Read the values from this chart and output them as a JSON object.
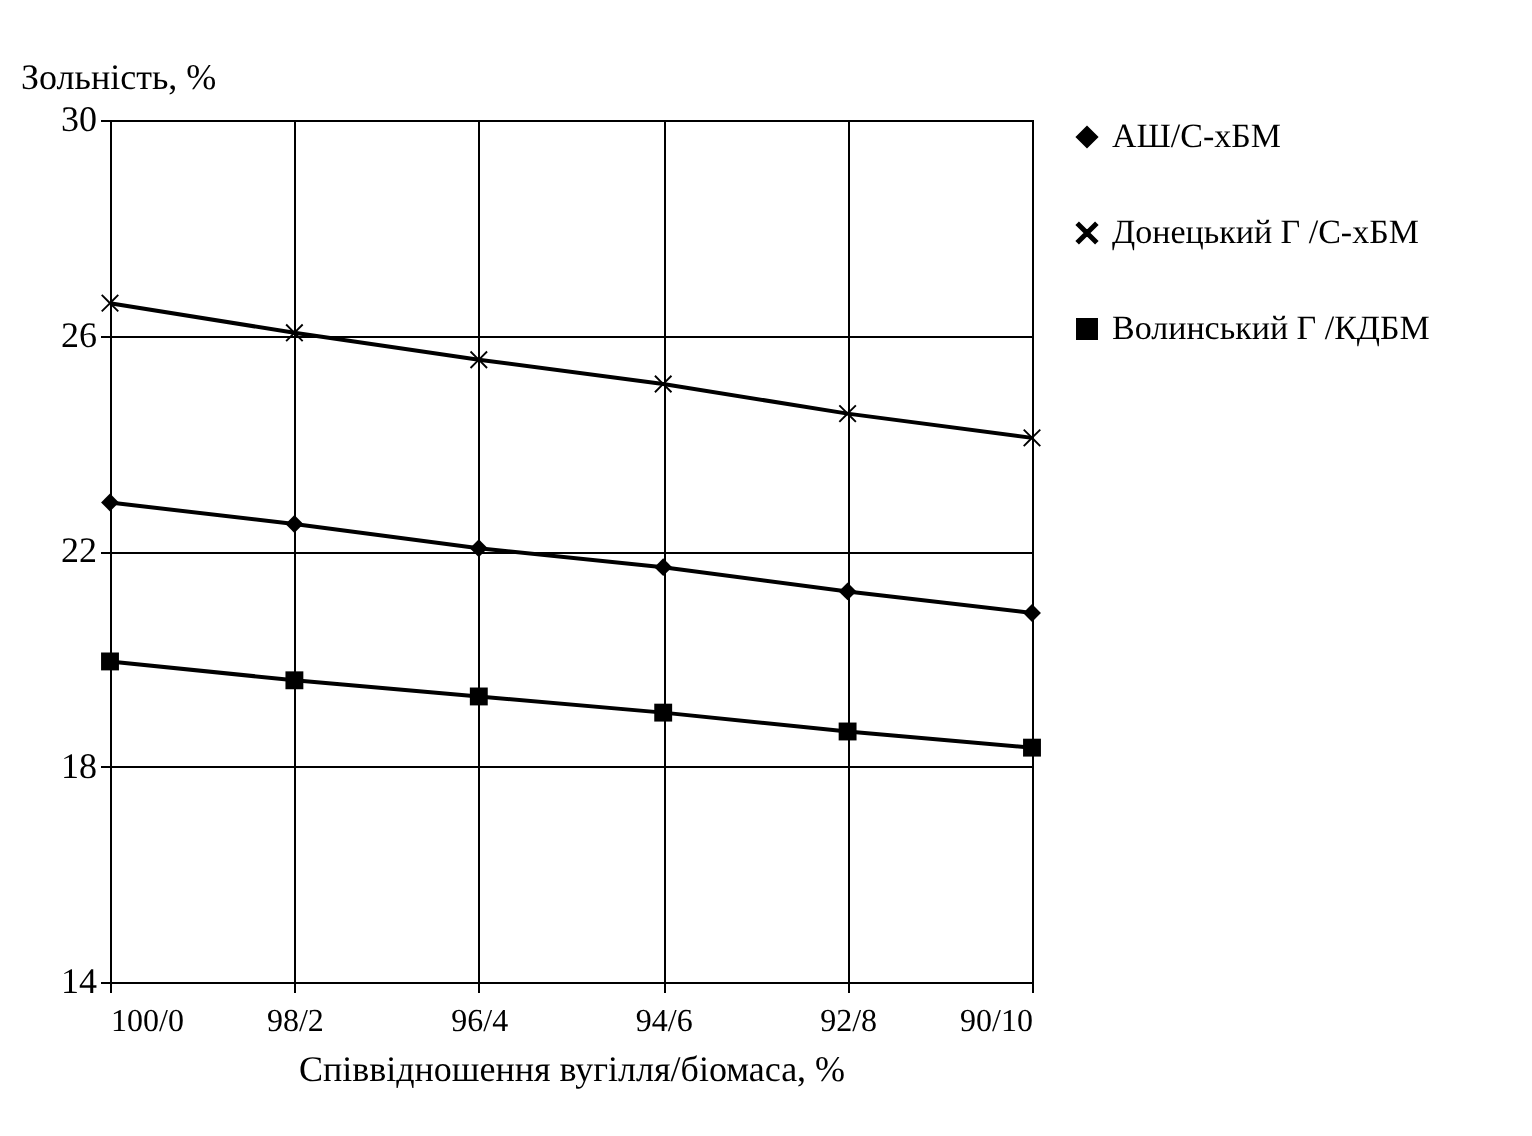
{
  "chart_data": {
    "type": "line",
    "xlabel": "Співвідношення вугілля/біомаса, %",
    "ylabel": "Зольність, %",
    "categories": [
      "100/0",
      "98/2",
      "96/4",
      "94/6",
      "92/8",
      "90/10"
    ],
    "series": [
      {
        "name": "АШ/С-хБМ",
        "color": "#000000",
        "marker": "diamond",
        "values": [
          22.9,
          22.5,
          22.05,
          21.7,
          21.25,
          20.85
        ]
      },
      {
        "name": "Донецький Г /С-хБМ",
        "color": "#000000",
        "marker": "cross",
        "values": [
          26.6,
          26.05,
          25.55,
          25.1,
          24.55,
          24.1
        ]
      },
      {
        "name": "Волинський Г /КДБМ",
        "color": "#000000",
        "marker": "square",
        "values": [
          19.95,
          19.6,
          19.3,
          19.0,
          18.65,
          18.35
        ]
      }
    ],
    "ylim": [
      14,
      30
    ],
    "yticks": [
      14,
      18,
      22,
      26,
      30
    ],
    "grid": true,
    "legend": "right",
    "line_style": "solid"
  }
}
